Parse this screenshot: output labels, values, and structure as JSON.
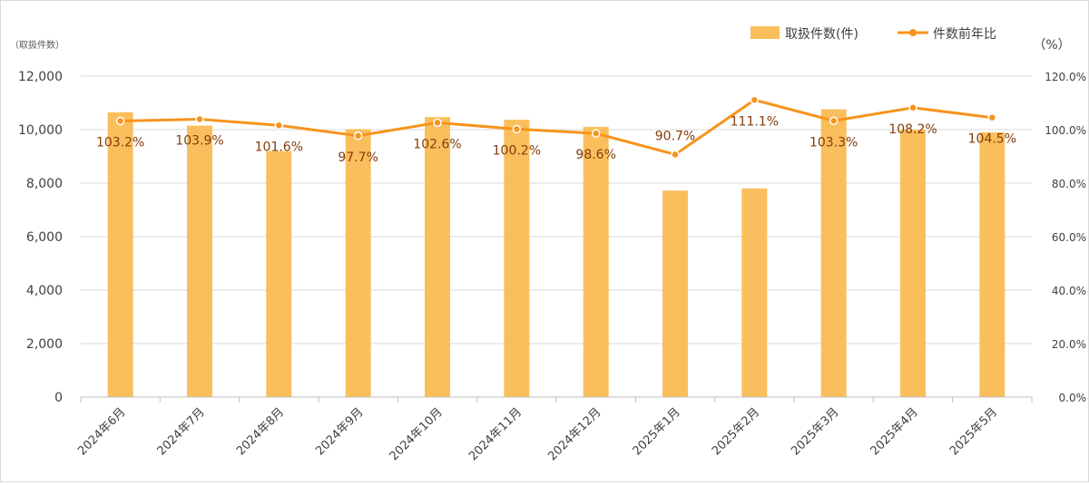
{
  "chart_data": {
    "type": "bar",
    "categories": [
      "2024年6月",
      "2024年7月",
      "2024年8月",
      "2024年9月",
      "2024年10月",
      "2024年11月",
      "2024年12月",
      "2025年1月",
      "2025年2月",
      "2025年3月",
      "2025年4月",
      "2025年5月"
    ],
    "series": [
      {
        "name": "取扱件数(件)",
        "type": "bar",
        "axis": "left",
        "color": "#FABF5C",
        "values": [
          10650,
          10150,
          9200,
          10020,
          10470,
          10370,
          10100,
          7720,
          7800,
          10760,
          10000,
          9900
        ]
      },
      {
        "name": "件数前年比",
        "type": "line",
        "axis": "right",
        "color": "#F7941D",
        "values": [
          103.2,
          103.9,
          101.6,
          97.7,
          102.6,
          100.2,
          98.6,
          90.7,
          111.1,
          103.3,
          108.2,
          104.5
        ],
        "labels": [
          "103.2%",
          "103.9%",
          "101.6%",
          "97.7%",
          "102.6%",
          "100.2%",
          "98.6%",
          "90.7%",
          "111.1%",
          "103.3%",
          "108.2%",
          "104.5%"
        ]
      }
    ],
    "y_left": {
      "label": "（取扱件数）",
      "ylim": [
        0,
        12000
      ],
      "ticks": [
        "0",
        "2,000",
        "4,000",
        "6,000",
        "8,000",
        "10,000",
        "12,000"
      ]
    },
    "y_right": {
      "label": "（%）",
      "ylim": [
        0,
        120
      ],
      "ticks": [
        "0.0%",
        "20.0%",
        "40.0%",
        "60.0%",
        "80.0%",
        "100.0%",
        "120.0%"
      ]
    },
    "grid": true,
    "legend": "top-right"
  }
}
